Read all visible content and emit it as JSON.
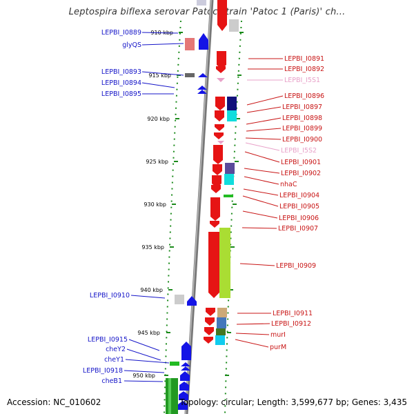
{
  "title": "Leptospira biflexa serovar Patoc strain 'Patoc 1 (Paris)' ch...",
  "footer": {
    "accession": "Accession: NC_010602",
    "summary": "Topology: circular; Length: 3,599,677 bp; Genes: 3,435"
  },
  "colors": {
    "forward": "#0a0adc",
    "reverse": "#dc0a0a",
    "rna": "#e8a0c8",
    "tick": "#1a8a1a",
    "backbone": "#888888"
  },
  "ticks": [
    {
      "label": "910 kbp"
    },
    {
      "label": "915 kbp"
    },
    {
      "label": "920 kbp"
    },
    {
      "label": "925 kbp"
    },
    {
      "label": "930 kbp"
    },
    {
      "label": "935 kbp"
    },
    {
      "label": "940 kbp"
    },
    {
      "label": "945 kbp"
    },
    {
      "label": "950 kbp"
    }
  ],
  "left_labels": [
    {
      "text": "LEPBI_I0889"
    },
    {
      "text": "glyQS"
    },
    {
      "text": "LEPBI_I0893"
    },
    {
      "text": "LEPBI_I0894"
    },
    {
      "text": "LEPBI_I0895"
    },
    {
      "text": "LEPBI_I0910"
    },
    {
      "text": "LEPBI_I0915"
    },
    {
      "text": "cheY2"
    },
    {
      "text": "cheY1"
    },
    {
      "text": "LEPBI_I0918"
    },
    {
      "text": "cheB1"
    }
  ],
  "right_labels": [
    {
      "text": "LEPBI_I0891"
    },
    {
      "text": "LEPBI_I0892"
    },
    {
      "text": "LEPBI_I5S1"
    },
    {
      "text": "LEPBI_I0896"
    },
    {
      "text": "LEPBI_I0897"
    },
    {
      "text": "LEPBI_I0898"
    },
    {
      "text": "LEPBI_I0899"
    },
    {
      "text": "LEPBI_I0900"
    },
    {
      "text": "LEPBI_I5S2"
    },
    {
      "text": "LEPBI_I0901"
    },
    {
      "text": "LEPBI_I0902"
    },
    {
      "text": "nhaC"
    },
    {
      "text": "LEPBI_I0904"
    },
    {
      "text": "LEPBI_I0905"
    },
    {
      "text": "LEPBI_I0906"
    },
    {
      "text": "LEPBI_I0907"
    },
    {
      "text": "LEPBI_I0909"
    },
    {
      "text": "LEPBI_I0911"
    },
    {
      "text": "LEPBI_I0912"
    },
    {
      "text": "murI"
    },
    {
      "text": "purM"
    }
  ]
}
